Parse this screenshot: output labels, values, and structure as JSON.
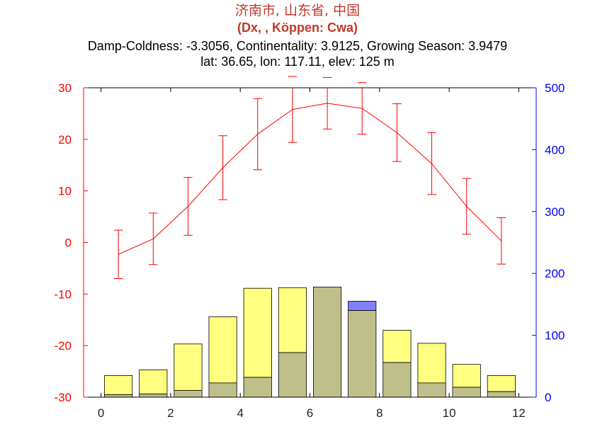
{
  "chart_data": {
    "type": "bar",
    "title_cn": "济南市, 山东省, 中国",
    "title_class": "(Dx, , Köppen: Cwa)",
    "title_indices": "Damp-Coldness: -3.3056, Continentality: 3.9125, Growing Season: 3.9479",
    "title_location": "lat: 36.65, lon: 117.11, elev: 125 m",
    "x": [
      0.5,
      1.5,
      2.5,
      3.5,
      4.5,
      5.5,
      6.5,
      7.5,
      8.5,
      9.5,
      10.5,
      11.5
    ],
    "xlim": [
      -0.5,
      12.5
    ],
    "xticks": [
      "0",
      "2",
      "4",
      "6",
      "8",
      "10",
      "12"
    ],
    "ylim_left": [
      -30,
      30
    ],
    "yticks_left": [
      "-30",
      "-20",
      "-10",
      "0",
      "10",
      "20",
      "30"
    ],
    "ylim_right": [
      0,
      500
    ],
    "yticks_right": [
      "0",
      "100",
      "200",
      "300",
      "400",
      "500"
    ],
    "grid": false,
    "colors": {
      "temperature": "#ff0000",
      "left_axis": "#ff0000",
      "right_axis": "#0000ff",
      "series_a": "#ffff80",
      "series_b": "#8080ff",
      "overlap": "#bfbf8c",
      "title": "#c0392b"
    },
    "series": [
      {
        "kind": "line_errorbar",
        "axis": "left",
        "values": [
          -2.3,
          0.7,
          7.0,
          14.5,
          21.0,
          25.8,
          27.0,
          26.0,
          21.3,
          15.3,
          7.0,
          0.3
        ],
        "error": [
          4.7,
          5.0,
          5.6,
          6.2,
          6.9,
          6.4,
          5.0,
          5.0,
          5.6,
          6.0,
          5.4,
          4.5
        ]
      },
      {
        "kind": "bar",
        "axis": "right",
        "values": [
          35,
          44,
          86,
          130,
          176,
          177,
          178,
          140,
          108,
          87,
          53,
          35
        ]
      },
      {
        "kind": "bar",
        "axis": "right",
        "values": [
          4,
          5,
          11,
          23,
          32,
          72,
          178,
          155,
          56,
          23,
          16,
          9
        ]
      }
    ]
  }
}
